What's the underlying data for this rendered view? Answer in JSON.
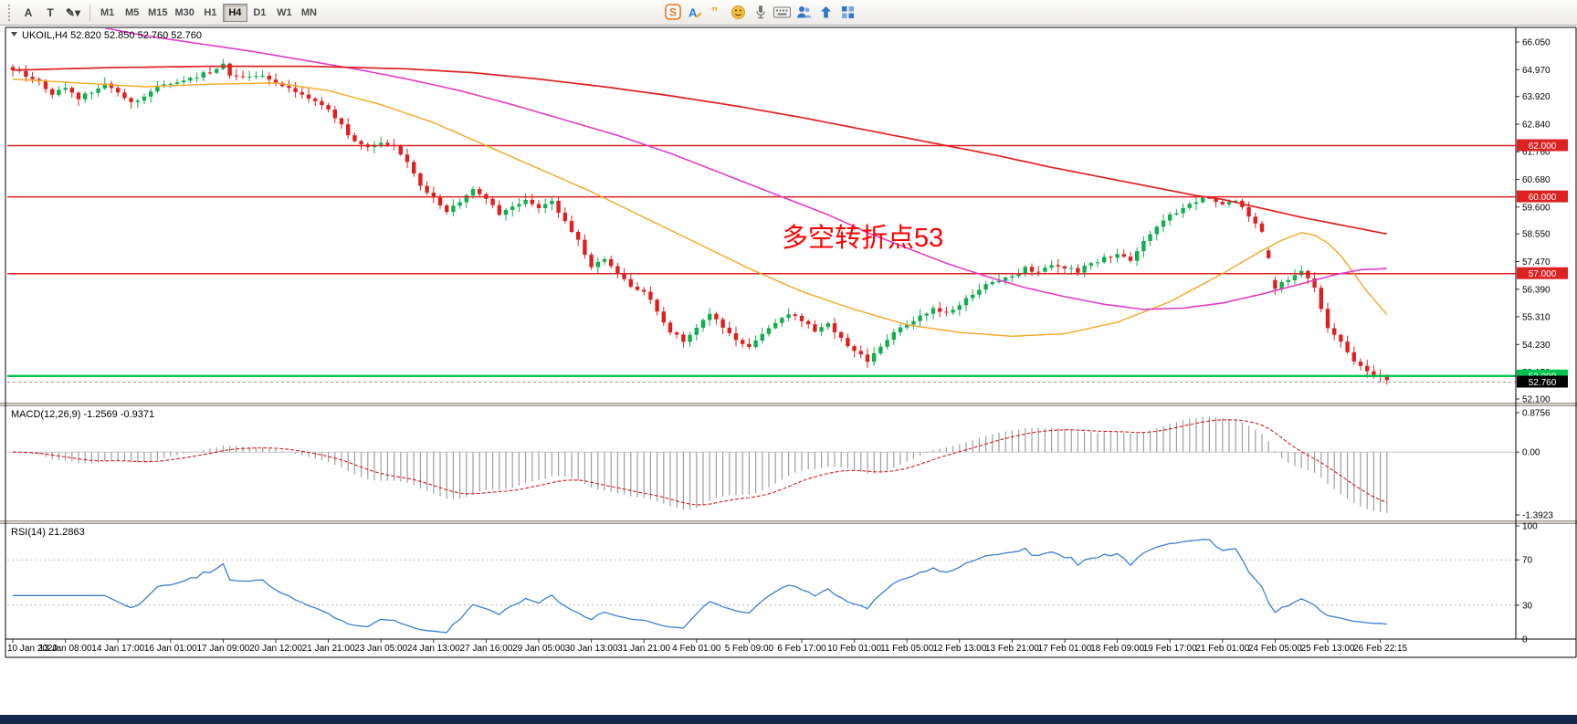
{
  "toolbar": {
    "left_buttons": [
      {
        "name": "label-tool-button",
        "glyph": "A"
      },
      {
        "name": "text-tool-button",
        "glyph": "T"
      },
      {
        "name": "drawing-tool-dropdown",
        "glyph": "✎▾"
      }
    ],
    "timeframes": [
      "M1",
      "M5",
      "M15",
      "M30",
      "H1",
      "H4",
      "D1",
      "W1",
      "MN"
    ],
    "active_timeframe": "H4",
    "right_icons": [
      {
        "name": "logo-s-icon",
        "color": "#ee7218"
      },
      {
        "name": "font-a-icon",
        "color": "#1f7ad4"
      },
      {
        "name": "quote-icon",
        "color": "#f0a818"
      },
      {
        "name": "smiley-icon",
        "color": "#f5c03a"
      },
      {
        "name": "mic-icon",
        "color": "#777777"
      },
      {
        "name": "keyboard-icon",
        "color": "#777777"
      },
      {
        "name": "users-icon",
        "color": "#2e74c9"
      },
      {
        "name": "upload-icon",
        "color": "#2e74c9"
      },
      {
        "name": "grid-icon",
        "color": "#2e74c9"
      }
    ]
  },
  "taskbar_color": "#15294c",
  "chart_data": [
    {
      "type": "candlestick",
      "title": "UKOIL,H4",
      "quote_ohlc": "52.820 52.850 52.760 52.760",
      "timeframe": "H4",
      "n_candles": 210,
      "up_color": "#0fae4e",
      "down_color": "#e02020",
      "y_range": [
        52.0,
        66.55
      ],
      "y_ticks": [
        "66.050",
        "64.970",
        "63.920",
        "62.840",
        "61.760",
        "60.680",
        "59.600",
        "58.550",
        "57.470",
        "56.390",
        "55.310",
        "54.230",
        "53.150",
        "52.100"
      ],
      "x_labels": [
        "10 Jan 2020",
        "13 Jan 08:00",
        "14 Jan 17:00",
        "16 Jan 01:00",
        "17 Jan 09:00",
        "20 Jan 12:00",
        "21 Jan 21:00",
        "23 Jan 05:00",
        "24 Jan 13:00",
        "27 Jan 16:00",
        "29 Jan 05:00",
        "30 Jan 13:00",
        "31 Jan 21:00",
        "4 Feb 01:00",
        "5 Feb 09:00",
        "6 Feb 17:00",
        "10 Feb 01:00",
        "11 Feb 05:00",
        "12 Feb 13:00",
        "13 Feb 21:00",
        "17 Feb 01:00",
        "18 Feb 09:00",
        "19 Feb 17:00",
        "21 Feb 01:00",
        "24 Feb 05:00",
        "25 Feb 13:00",
        "26 Feb 22:15"
      ],
      "hlines": [
        {
          "value": 62.0,
          "label": "62.000",
          "color": "#dd2222"
        },
        {
          "value": 60.0,
          "label": "60.000",
          "color": "#dd2222"
        },
        {
          "value": 57.0,
          "label": "57.000",
          "color": "#dd2222"
        },
        {
          "value": 53.0,
          "label": "53.000",
          "color": "#00c24e"
        }
      ],
      "current_price": {
        "value": 52.76,
        "label": "52.760",
        "color": "#000000"
      },
      "annotation": {
        "text": "多空转折点53",
        "color": "#ff0000",
        "x_index": 117,
        "price": 58.05
      },
      "price_path": [
        [
          0,
          65.0
        ],
        [
          2,
          64.75
        ],
        [
          4,
          64.5
        ],
        [
          6,
          64.05
        ],
        [
          8,
          64.3
        ],
        [
          10,
          63.85
        ],
        [
          12,
          64.1
        ],
        [
          14,
          64.45
        ],
        [
          16,
          64.1
        ],
        [
          18,
          63.7
        ],
        [
          20,
          63.9
        ],
        [
          22,
          64.3
        ],
        [
          24,
          64.4
        ],
        [
          26,
          64.55
        ],
        [
          28,
          64.7
        ],
        [
          30,
          64.9
        ],
        [
          32,
          65.2
        ],
        [
          33,
          64.8
        ],
        [
          35,
          64.65
        ],
        [
          38,
          64.75
        ],
        [
          40,
          64.45
        ],
        [
          42,
          64.2
        ],
        [
          44,
          63.95
        ],
        [
          46,
          63.7
        ],
        [
          48,
          63.45
        ],
        [
          50,
          62.8
        ],
        [
          52,
          62.15
        ],
        [
          54,
          61.9
        ],
        [
          56,
          62.05
        ],
        [
          58,
          62.0
        ],
        [
          60,
          61.4
        ],
        [
          62,
          60.5
        ],
        [
          64,
          59.95
        ],
        [
          66,
          59.45
        ],
        [
          68,
          59.8
        ],
        [
          70,
          60.25
        ],
        [
          72,
          59.9
        ],
        [
          74,
          59.35
        ],
        [
          76,
          59.6
        ],
        [
          78,
          59.95
        ],
        [
          80,
          59.6
        ],
        [
          82,
          59.9
        ],
        [
          84,
          59.0
        ],
        [
          86,
          58.3
        ],
        [
          88,
          57.3
        ],
        [
          90,
          57.6
        ],
        [
          92,
          57.0
        ],
        [
          94,
          56.5
        ],
        [
          96,
          56.35
        ],
        [
          98,
          55.5
        ],
        [
          100,
          54.75
        ],
        [
          102,
          54.35
        ],
        [
          104,
          54.9
        ],
        [
          106,
          55.4
        ],
        [
          108,
          54.9
        ],
        [
          110,
          54.35
        ],
        [
          112,
          54.15
        ],
        [
          114,
          54.65
        ],
        [
          116,
          55.1
        ],
        [
          118,
          55.4
        ],
        [
          120,
          55.2
        ],
        [
          122,
          54.8
        ],
        [
          124,
          55.0
        ],
        [
          126,
          54.45
        ],
        [
          128,
          53.95
        ],
        [
          130,
          53.6
        ],
        [
          132,
          54.15
        ],
        [
          134,
          54.7
        ],
        [
          136,
          55.0
        ],
        [
          138,
          55.35
        ],
        [
          140,
          55.6
        ],
        [
          142,
          55.45
        ],
        [
          144,
          55.8
        ],
        [
          146,
          56.2
        ],
        [
          148,
          56.6
        ],
        [
          150,
          56.7
        ],
        [
          152,
          56.85
        ],
        [
          154,
          57.2
        ],
        [
          156,
          57.05
        ],
        [
          158,
          57.3
        ],
        [
          160,
          57.25
        ],
        [
          162,
          57.1
        ],
        [
          164,
          57.4
        ],
        [
          166,
          57.6
        ],
        [
          168,
          57.75
        ],
        [
          170,
          57.5
        ],
        [
          172,
          58.3
        ],
        [
          174,
          58.9
        ],
        [
          176,
          59.3
        ],
        [
          178,
          59.55
        ],
        [
          180,
          59.8
        ],
        [
          182,
          60.0
        ],
        [
          184,
          59.65
        ],
        [
          186,
          59.9
        ],
        [
          188,
          59.2
        ],
        [
          190,
          58.7
        ],
        [
          192,
          56.4
        ],
        [
          194,
          56.8
        ],
        [
          196,
          57.15
        ],
        [
          198,
          56.4
        ],
        [
          200,
          54.9
        ],
        [
          202,
          54.35
        ],
        [
          204,
          53.6
        ],
        [
          206,
          53.15
        ],
        [
          208,
          52.95
        ],
        [
          209,
          52.78
        ]
      ],
      "ma_lines": [
        {
          "name": "ma-fast-orange",
          "color": "#f5a623",
          "width": 1.4,
          "anchors": [
            [
              0,
              64.6
            ],
            [
              10,
              64.45
            ],
            [
              20,
              64.3
            ],
            [
              30,
              64.4
            ],
            [
              40,
              64.45
            ],
            [
              48,
              64.15
            ],
            [
              56,
              63.6
            ],
            [
              64,
              62.9
            ],
            [
              72,
              62.0
            ],
            [
              80,
              61.1
            ],
            [
              88,
              60.2
            ],
            [
              96,
              59.2
            ],
            [
              104,
              58.2
            ],
            [
              112,
              57.2
            ],
            [
              120,
              56.3
            ],
            [
              128,
              55.6
            ],
            [
              136,
              55.0
            ],
            [
              144,
              54.7
            ],
            [
              152,
              54.55
            ],
            [
              160,
              54.65
            ],
            [
              168,
              55.1
            ],
            [
              176,
              55.9
            ],
            [
              184,
              57.0
            ],
            [
              190,
              57.9
            ],
            [
              193,
              58.3
            ],
            [
              196,
              58.6
            ],
            [
              198,
              58.5
            ],
            [
              200,
              58.2
            ],
            [
              202,
              57.7
            ],
            [
              204,
              57.0
            ],
            [
              206,
              56.3
            ],
            [
              208,
              55.7
            ],
            [
              209,
              55.4
            ]
          ]
        },
        {
          "name": "ma-mid-magenta",
          "color": "#e23cc8",
          "width": 1.6,
          "anchors": [
            [
              14,
              66.6
            ],
            [
              20,
              66.3
            ],
            [
              28,
              66.0
            ],
            [
              36,
              65.7
            ],
            [
              44,
              65.35
            ],
            [
              52,
              65.0
            ],
            [
              60,
              64.6
            ],
            [
              68,
              64.15
            ],
            [
              76,
              63.6
            ],
            [
              84,
              63.0
            ],
            [
              92,
              62.4
            ],
            [
              100,
              61.7
            ],
            [
              108,
              60.9
            ],
            [
              116,
              60.1
            ],
            [
              124,
              59.3
            ],
            [
              130,
              58.6
            ],
            [
              136,
              58.0
            ],
            [
              142,
              57.4
            ],
            [
              148,
              56.9
            ],
            [
              154,
              56.45
            ],
            [
              160,
              56.1
            ],
            [
              166,
              55.8
            ],
            [
              172,
              55.6
            ],
            [
              178,
              55.65
            ],
            [
              184,
              55.85
            ],
            [
              190,
              56.2
            ],
            [
              196,
              56.6
            ],
            [
              201,
              56.95
            ],
            [
              205,
              57.15
            ],
            [
              209,
              57.2
            ]
          ]
        },
        {
          "name": "ma-slow-red",
          "color": "#e02020",
          "width": 1.7,
          "anchors": [
            [
              0,
              64.95
            ],
            [
              15,
              65.05
            ],
            [
              30,
              65.1
            ],
            [
              45,
              65.1
            ],
            [
              60,
              65.0
            ],
            [
              70,
              64.85
            ],
            [
              80,
              64.6
            ],
            [
              90,
              64.3
            ],
            [
              100,
              63.95
            ],
            [
              110,
              63.55
            ],
            [
              120,
              63.1
            ],
            [
              130,
              62.6
            ],
            [
              140,
              62.1
            ],
            [
              145,
              61.85
            ],
            [
              150,
              61.6
            ],
            [
              158,
              61.15
            ],
            [
              166,
              60.75
            ],
            [
              174,
              60.35
            ],
            [
              180,
              60.05
            ],
            [
              184,
              59.9
            ],
            [
              190,
              59.55
            ],
            [
              196,
              59.2
            ],
            [
              202,
              58.9
            ],
            [
              209,
              58.55
            ]
          ]
        }
      ]
    },
    {
      "type": "macd",
      "label": "MACD(12,26,9) -1.2569 -0.9371",
      "params": [
        12,
        26,
        9
      ],
      "values_text": [
        "-1.2569",
        "-0.9371"
      ],
      "y_ticks": [
        "0.8756",
        "0.00",
        "-1.3923"
      ],
      "y_tick_values": [
        0.8756,
        0,
        -1.3923
      ],
      "histogram_color": "#9e9e9e",
      "signal_color": "#d02020"
    },
    {
      "type": "rsi",
      "label": "RSI(14) 21.2863",
      "period": 14,
      "current": 21.2863,
      "levels": [
        70,
        30
      ],
      "y_ticks": [
        "100",
        "70",
        "30",
        "0"
      ],
      "y_tick_values": [
        100,
        70,
        30,
        0
      ],
      "line_color": "#3b7fd4"
    }
  ]
}
